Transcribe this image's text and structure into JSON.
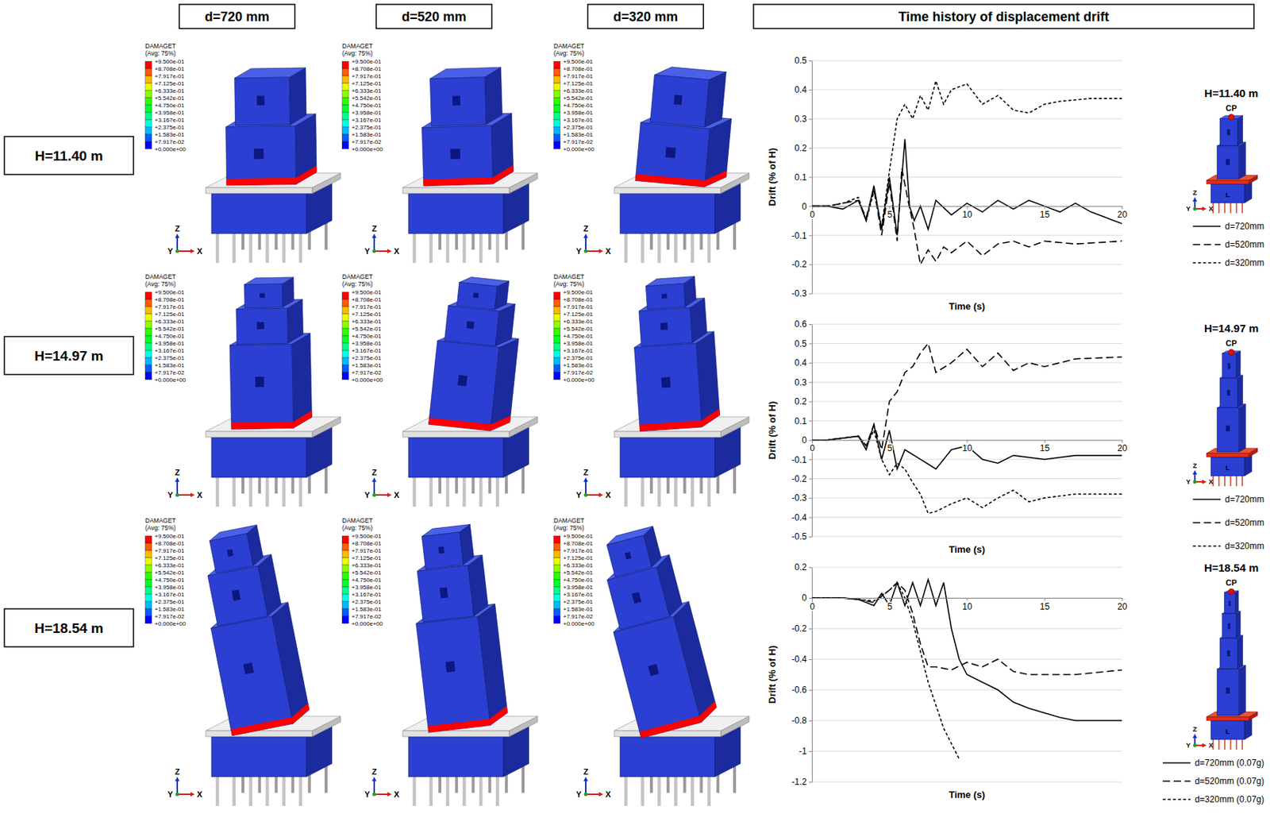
{
  "header": {
    "columns": [
      "d=720 mm",
      "d=520 mm",
      "d=320 mm"
    ],
    "chart_column": "Time history of displacement drift"
  },
  "rows": [
    "H=11.40 m",
    "H=14.97 m",
    "H=18.54 m"
  ],
  "contour_legend": {
    "title": "DAMAGET",
    "subtitle": "(Avg: 75%)",
    "ticks": [
      {
        "value": 0.95,
        "label": "+9.500e-01"
      },
      {
        "value": 0.8708,
        "label": "+8.708e-01"
      },
      {
        "value": 0.7917,
        "label": "+7.917e-01"
      },
      {
        "value": 0.7125,
        "label": "+7.125e-01"
      },
      {
        "value": 0.6333,
        "label": "+6.333e-01"
      },
      {
        "value": 0.5542,
        "label": "+5.542e-01"
      },
      {
        "value": 0.475,
        "label": "+4.750e-01"
      },
      {
        "value": 0.3958,
        "label": "+3.958e-01"
      },
      {
        "value": 0.3167,
        "label": "+3.167e-01"
      },
      {
        "value": 0.2375,
        "label": "+2.375e-01"
      },
      {
        "value": 0.1583,
        "label": "+1.583e-01"
      },
      {
        "value": 0.07917,
        "label": "+7.917e-02"
      },
      {
        "value": 0,
        "label": "+0.000e+00"
      }
    ],
    "colors": [
      "#ff0000",
      "#ff5d00",
      "#ffb900",
      "#e8ff00",
      "#8bff00",
      "#2eff00",
      "#00ff2e",
      "#00ff8b",
      "#00ffe8",
      "#00b9ff",
      "#005dff",
      "#0000ff"
    ]
  },
  "axis_triad": [
    "Z",
    "Y",
    "X"
  ],
  "chart_data": [
    {
      "type": "line",
      "title": "H=11.40 m",
      "annotations": [
        "CP",
        "L"
      ],
      "xlabel": "Time (s)",
      "ylabel": "Drift (% of H)",
      "xlim": [
        0,
        20
      ],
      "xticks": [
        0,
        5,
        10,
        15,
        20
      ],
      "ylim": [
        -0.3,
        0.5
      ],
      "yticks": [
        -0.3,
        -0.2,
        -0.1,
        0,
        0.1,
        0.2,
        0.3,
        0.4,
        0.5
      ],
      "grid": true,
      "legend": "right",
      "series": [
        {
          "name": "d=720mm",
          "color": "#000000",
          "line_style": "solid",
          "x": [
            0,
            1,
            2,
            3,
            3.5,
            4,
            4.5,
            5,
            5.5,
            6,
            6.3,
            6.6,
            7,
            7.5,
            8,
            9,
            10,
            11,
            12,
            13,
            14,
            15,
            16,
            17,
            18,
            19,
            20
          ],
          "values": [
            0,
            0,
            -0.01,
            0.02,
            -0.05,
            0.07,
            -0.08,
            0.1,
            -0.1,
            0.23,
            0,
            -0.05,
            0,
            -0.08,
            0.02,
            -0.03,
            0.01,
            -0.02,
            0.02,
            -0.01,
            0.02,
            0,
            -0.02,
            0.01,
            -0.02,
            -0.04,
            -0.06
          ]
        },
        {
          "name": "d=520mm",
          "color": "#000000",
          "line_style": "long_dash",
          "x": [
            0,
            1,
            2,
            3,
            3.5,
            4,
            4.5,
            5,
            5.5,
            5.8,
            6.2,
            6.6,
            7,
            7.5,
            8,
            8.5,
            9,
            10,
            11,
            12,
            13,
            14,
            15,
            17,
            20
          ],
          "values": [
            0,
            0,
            0.01,
            0.02,
            -0.04,
            0.06,
            -0.1,
            0.08,
            -0.12,
            0.13,
            0.02,
            -0.08,
            -0.2,
            -0.15,
            -0.19,
            -0.14,
            -0.16,
            -0.12,
            -0.17,
            -0.13,
            -0.12,
            -0.14,
            -0.12,
            -0.13,
            -0.12
          ]
        },
        {
          "name": "d=320mm",
          "color": "#000000",
          "line_style": "short_dash",
          "x": [
            0,
            1,
            2,
            3,
            3.5,
            4,
            4.5,
            5,
            5.5,
            6,
            6.5,
            7,
            7.5,
            8,
            8.5,
            9,
            10,
            11,
            12,
            13,
            14,
            15,
            16,
            18,
            20
          ],
          "values": [
            0,
            0,
            0.01,
            0.03,
            -0.05,
            0.05,
            -0.07,
            0.12,
            0.3,
            0.35,
            0.3,
            0.38,
            0.33,
            0.43,
            0.35,
            0.4,
            0.42,
            0.35,
            0.38,
            0.33,
            0.32,
            0.35,
            0.36,
            0.37,
            0.37
          ]
        }
      ]
    },
    {
      "type": "line",
      "title": "H=14.97 m",
      "annotations": [
        "CP",
        "L"
      ],
      "xlabel": "Time (s)",
      "ylabel": "Drift (% of H)",
      "xlim": [
        0,
        20
      ],
      "xticks": [
        0,
        5,
        10,
        15,
        20
      ],
      "ylim": [
        -0.5,
        0.6
      ],
      "yticks": [
        -0.5,
        -0.4,
        -0.3,
        -0.2,
        -0.1,
        0,
        0.1,
        0.2,
        0.3,
        0.4,
        0.5,
        0.6
      ],
      "grid": true,
      "legend": "right",
      "series": [
        {
          "name": "d=720mm",
          "color": "#000000",
          "line_style": "solid",
          "x": [
            0,
            1,
            2,
            3,
            3.5,
            4,
            4.5,
            5,
            5.5,
            6,
            7,
            8,
            9,
            10,
            11,
            12,
            13,
            15,
            17,
            20
          ],
          "values": [
            0,
            0,
            0.01,
            0.02,
            -0.05,
            0.08,
            -0.1,
            0.05,
            -0.15,
            -0.05,
            -0.1,
            -0.15,
            -0.05,
            -0.03,
            -0.1,
            -0.12,
            -0.08,
            -0.1,
            -0.08,
            -0.08
          ]
        },
        {
          "name": "d=520mm",
          "color": "#000000",
          "line_style": "long_dash",
          "x": [
            0,
            1,
            2,
            3,
            3.5,
            4,
            4.5,
            5,
            5.5,
            6,
            6.5,
            7,
            7.5,
            8,
            9,
            10,
            11,
            12,
            13,
            14,
            15,
            17,
            20
          ],
          "values": [
            0,
            0,
            0.01,
            0.02,
            -0.03,
            0.08,
            -0.05,
            0.2,
            0.25,
            0.35,
            0.38,
            0.45,
            0.5,
            0.35,
            0.4,
            0.47,
            0.38,
            0.45,
            0.36,
            0.4,
            0.38,
            0.42,
            0.43
          ]
        },
        {
          "name": "d=320mm",
          "color": "#000000",
          "line_style": "short_dash",
          "x": [
            0,
            1,
            2,
            3,
            3.5,
            4,
            4.5,
            5,
            5.5,
            6,
            6.5,
            7,
            7.5,
            8,
            9,
            10,
            11,
            12,
            13,
            14,
            15,
            17,
            20
          ],
          "values": [
            0,
            0,
            0.01,
            0.02,
            -0.03,
            0.05,
            -0.1,
            -0.18,
            -0.12,
            -0.15,
            -0.22,
            -0.28,
            -0.38,
            -0.37,
            -0.33,
            -0.3,
            -0.35,
            -0.3,
            -0.26,
            -0.32,
            -0.3,
            -0.28,
            -0.28
          ]
        }
      ]
    },
    {
      "type": "line",
      "title": "H=18.54 m",
      "annotations": [
        "CP",
        "L"
      ],
      "xlabel": "Time (s)",
      "ylabel": "Drift (% of H)",
      "xlim": [
        0,
        20
      ],
      "xticks": [
        0,
        5,
        10,
        15,
        20
      ],
      "ylim": [
        -1.2,
        0.2
      ],
      "yticks": [
        -1.2,
        -1,
        -0.8,
        -0.6,
        -0.4,
        -0.2,
        0,
        0.2
      ],
      "grid": true,
      "legend": "right",
      "series": [
        {
          "name": "d=720mm (0.07g)",
          "color": "#000000",
          "line_style": "solid",
          "x": [
            0,
            1,
            2,
            3,
            4,
            4.5,
            5,
            5.5,
            6,
            6.5,
            7,
            7.5,
            8,
            8.5,
            9,
            9.5,
            10,
            11,
            12,
            13,
            14,
            15,
            16,
            17,
            18,
            20
          ],
          "values": [
            0,
            0,
            0,
            -0.01,
            -0.05,
            0.03,
            -0.05,
            0.1,
            -0.05,
            0.1,
            -0.05,
            0.12,
            -0.05,
            0.1,
            -0.2,
            -0.4,
            -0.5,
            -0.55,
            -0.6,
            -0.68,
            -0.72,
            -0.75,
            -0.78,
            -0.8,
            -0.8,
            -0.8
          ]
        },
        {
          "name": "d=520mm (0.07g)",
          "color": "#000000",
          "line_style": "long_dash",
          "x": [
            0,
            1,
            2,
            3,
            4,
            5,
            5.5,
            6,
            6.5,
            7,
            7.5,
            8,
            9,
            10,
            11,
            12,
            13,
            14,
            15,
            17,
            20
          ],
          "values": [
            0,
            0,
            0,
            -0.01,
            -0.03,
            0.05,
            0.1,
            0.05,
            -0.1,
            -0.3,
            -0.45,
            -0.45,
            -0.47,
            -0.42,
            -0.45,
            -0.4,
            -0.48,
            -0.5,
            -0.5,
            -0.5,
            -0.47
          ]
        },
        {
          "name": "d=320mm (0.07g)",
          "color": "#000000",
          "line_style": "short_dash",
          "x": [
            0,
            1,
            2,
            3,
            4,
            5,
            5.5,
            6,
            6.5,
            7,
            7.5,
            8,
            8.5,
            9,
            9.5
          ],
          "values": [
            0,
            0,
            0,
            -0.01,
            -0.02,
            0.05,
            0.1,
            0,
            -0.15,
            -0.35,
            -0.55,
            -0.7,
            -0.85,
            -0.95,
            -1.05
          ]
        }
      ]
    }
  ]
}
